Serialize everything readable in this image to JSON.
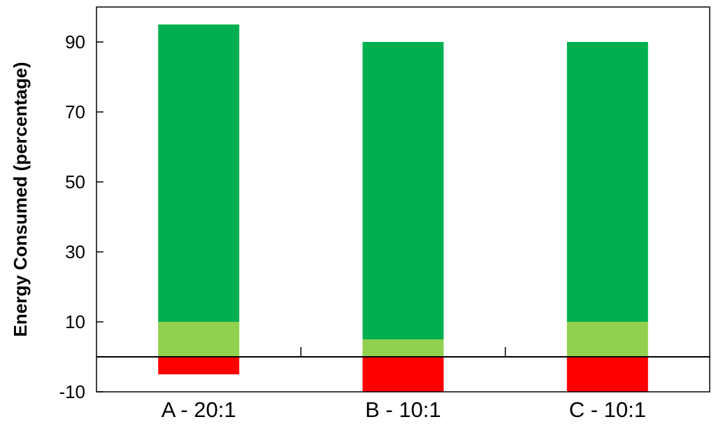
{
  "chart_data": {
    "type": "bar",
    "stacked": true,
    "title": "",
    "xlabel": "",
    "ylabel": "Energy Consumed (percentage)",
    "ylim": [
      -10,
      100
    ],
    "yticks": [
      -10,
      10,
      30,
      50,
      70,
      90
    ],
    "grid": false,
    "legend": "none",
    "categories": [
      "A - 20:1",
      "B - 10:1",
      "C - 10:1"
    ],
    "series": [
      {
        "values": [
          -5,
          -10,
          -10
        ],
        "color": "#ff0000"
      },
      {
        "values": [
          10,
          5,
          10
        ],
        "color": "#92d050"
      },
      {
        "values": [
          85,
          85,
          80
        ],
        "color": "#00b050"
      }
    ]
  }
}
